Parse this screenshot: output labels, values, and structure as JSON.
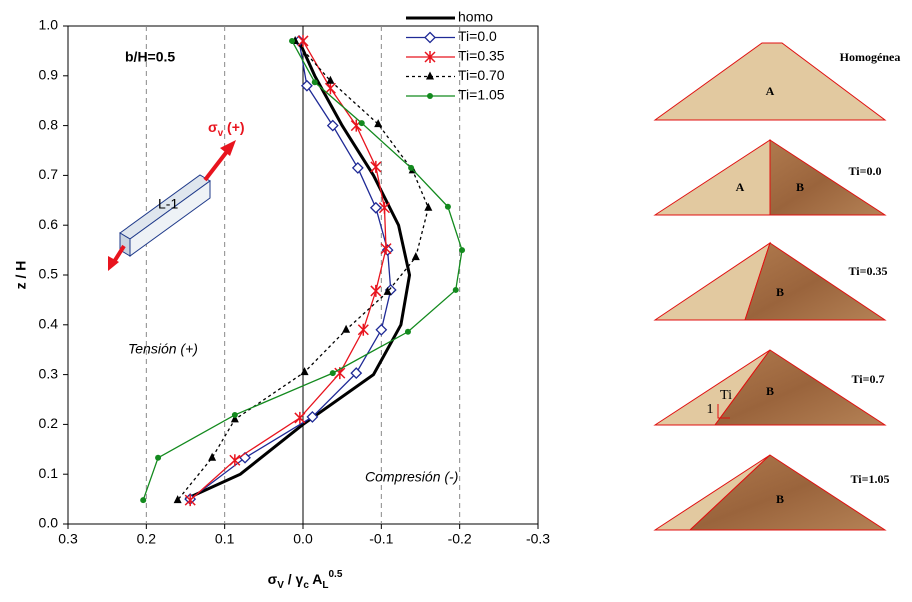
{
  "chart_data": {
    "type": "line",
    "x_label": [
      "σ",
      "V",
      " / γ",
      "c",
      " A",
      "L",
      "0.5"
    ],
    "y_label": "z / H",
    "annotations": {
      "ratio": "b/H=0.5",
      "tension": "Tensión (+)",
      "compression": "Compresión (-)",
      "element": "L-1",
      "stress": [
        "σ",
        "v",
        " (+)"
      ]
    },
    "xlim": [
      0.3,
      -0.3
    ],
    "xticks": [
      0.3,
      0.2,
      0.1,
      {
        "value": 0,
        "label": "0.0"
      },
      -0.1,
      -0.2,
      -0.3
    ],
    "ylim": [
      0,
      1
    ],
    "yticks": [
      {
        "value": 0,
        "label": "0.0"
      },
      0.1,
      0.2,
      0.3,
      0.4,
      0.5,
      0.6,
      0.7,
      0.8,
      0.9,
      {
        "value": 1,
        "label": "1.0"
      }
    ],
    "grid": true,
    "series": [
      {
        "name": "homo",
        "color": "#000000",
        "x": [
          0.005,
          -0.015,
          -0.05,
          -0.09,
          -0.122,
          -0.136,
          -0.125,
          -0.09,
          0.0,
          0.08,
          0.15
        ],
        "values": [
          0.97,
          0.9,
          0.8,
          0.7,
          0.6,
          0.5,
          0.4,
          0.3,
          0.2,
          0.1,
          0.05
        ]
      },
      {
        "name": "Ti=0.0",
        "color": "#1f2a96",
        "x": [
          0.005,
          -0.005,
          -0.038,
          -0.07,
          -0.093,
          -0.108,
          -0.112,
          -0.1,
          -0.068,
          -0.012,
          0.074,
          0.144
        ],
        "values": [
          0.97,
          0.88,
          0.8,
          0.715,
          0.635,
          0.55,
          0.47,
          0.39,
          0.303,
          0.215,
          0.133,
          0.05
        ]
      },
      {
        "name": "Ti=0.35",
        "color": "#e8141e",
        "x": [
          0.0,
          -0.035,
          -0.068,
          -0.093,
          -0.104,
          -0.106,
          -0.093,
          -0.077,
          -0.047,
          0.004,
          0.087,
          0.144
        ],
        "values": [
          0.97,
          0.875,
          0.8,
          0.717,
          0.635,
          0.553,
          0.468,
          0.39,
          0.303,
          0.213,
          0.128,
          0.048
        ]
      },
      {
        "name": "Ti=0.70",
        "color": "#000000",
        "x": [
          0.01,
          -0.035,
          -0.096,
          -0.14,
          -0.16,
          -0.144,
          -0.108,
          -0.055,
          -0.002,
          0.087,
          0.116,
          0.16
        ],
        "values": [
          0.97,
          0.89,
          0.803,
          0.71,
          0.635,
          0.536,
          0.466,
          0.39,
          0.305,
          0.21,
          0.133,
          0.048
        ]
      },
      {
        "name": "Ti=1.05",
        "color": "#138a1e",
        "x": [
          0.014,
          -0.015,
          -0.075,
          -0.138,
          -0.185,
          -0.203,
          -0.195,
          -0.134,
          -0.038,
          0.087,
          0.185,
          0.204
        ],
        "values": [
          0.97,
          0.887,
          0.805,
          0.715,
          0.637,
          0.55,
          0.47,
          0.386,
          0.303,
          0.219,
          0.133,
          0.048
        ]
      }
    ]
  },
  "diagrams": [
    {
      "title": "Homogénea",
      "labels": [
        "A"
      ]
    },
    {
      "title": "Ti=0.0",
      "labels": [
        "A",
        "B"
      ]
    },
    {
      "title": "Ti=0.35",
      "labels": [
        "B"
      ]
    },
    {
      "title": "Ti=0.7",
      "labels": [
        "B",
        "Ti",
        "1"
      ]
    },
    {
      "title": "Ti=1.05",
      "labels": [
        "B"
      ]
    }
  ]
}
